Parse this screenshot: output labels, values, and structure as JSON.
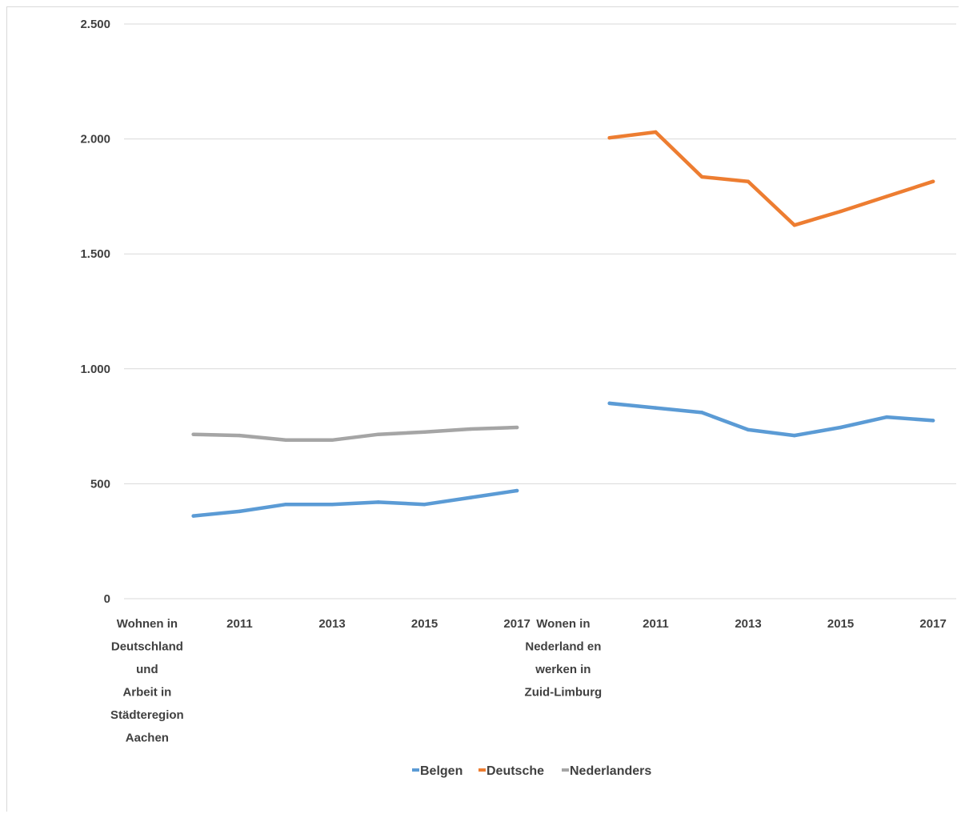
{
  "chart_data": {
    "type": "line",
    "title": "",
    "xlabel": "",
    "ylabel": "",
    "ylim": [
      0,
      2500
    ],
    "yticks": [
      0,
      500,
      1000,
      1500,
      2000,
      2500
    ],
    "ytick_labels": [
      "0",
      "500",
      "1.000",
      "1.500",
      "2.000",
      "2.500"
    ],
    "grid": "horizontal",
    "legend_position": "bottom",
    "groups": [
      {
        "label": [
          "Wohnen in",
          "Deutschland",
          "und",
          "Arbeit in",
          "Städteregion",
          "Aachen"
        ],
        "x": [
          2010,
          2011,
          2012,
          2013,
          2014,
          2015,
          2016,
          2017
        ],
        "tick_labels": [
          "",
          "2011",
          "",
          "2013",
          "",
          "2015",
          "",
          "2017"
        ]
      },
      {
        "label": [
          "Wonen in",
          "Nederland en",
          "werken in",
          "Zuid-Limburg"
        ],
        "x": [
          2010,
          2011,
          2012,
          2013,
          2014,
          2015,
          2016,
          2017
        ],
        "tick_labels": [
          "",
          "2011",
          "",
          "2013",
          "",
          "2015",
          "",
          "2017"
        ]
      }
    ],
    "series": [
      {
        "name": "Belgen",
        "color": "#5b9bd5",
        "groups": [
          [
            360,
            380,
            410,
            410,
            420,
            410,
            440,
            470
          ],
          [
            850,
            830,
            810,
            735,
            710,
            745,
            790,
            775
          ]
        ]
      },
      {
        "name": "Deutsche",
        "color": "#ed7d31",
        "groups": [
          [],
          [
            2005,
            2030,
            1835,
            1815,
            1625,
            1685,
            1750,
            1815
          ]
        ]
      },
      {
        "name": "Nederlanders",
        "color": "#a5a5a5",
        "groups": [
          [
            715,
            710,
            690,
            690,
            715,
            725,
            738,
            745
          ],
          []
        ]
      }
    ]
  }
}
